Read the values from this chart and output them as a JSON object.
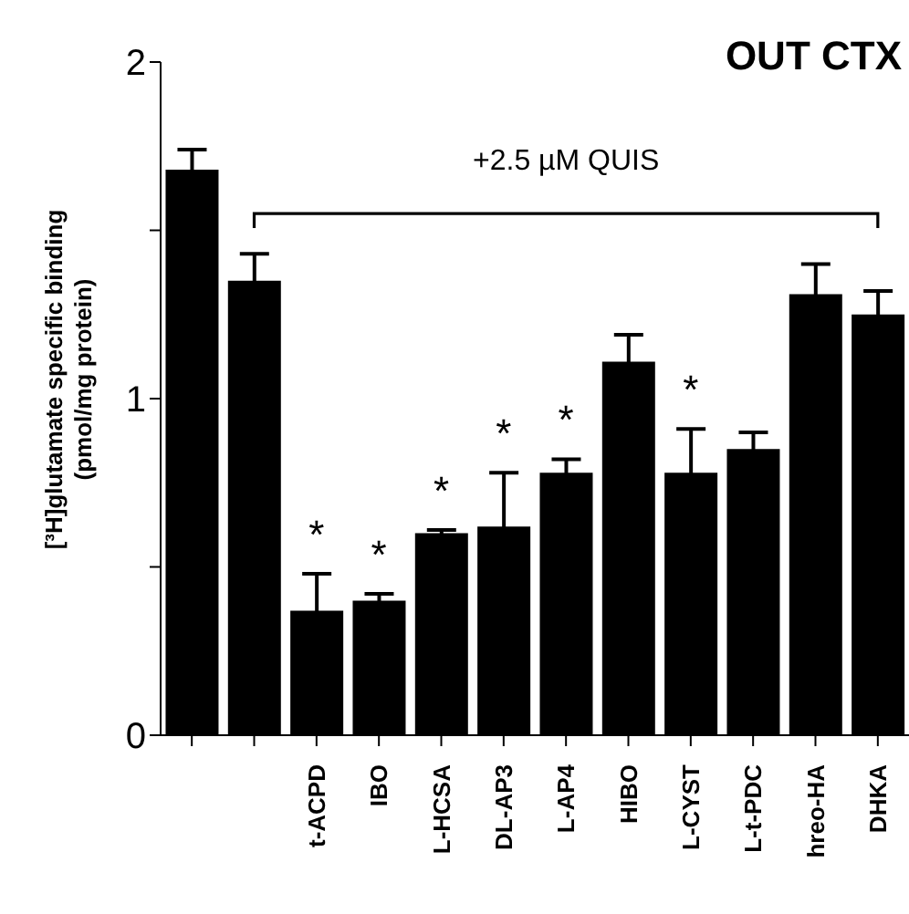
{
  "chart_data": {
    "type": "bar",
    "title": "OUT CTX",
    "ylabel": "[³H]glutamate specific binding\n(pmol/mg protein)",
    "categories": [
      null,
      null,
      "t-ACPD",
      "IBO",
      "L-HCSA",
      "DL-AP3",
      "L-AP4",
      "HIBO",
      "L-CYST",
      "L-t-PDC",
      "hreo-HA",
      "DHKA"
    ],
    "values": [
      1.68,
      1.35,
      0.37,
      0.4,
      0.6,
      0.62,
      0.78,
      1.11,
      0.78,
      0.85,
      1.31,
      1.25
    ],
    "errors": [
      0.06,
      0.08,
      0.11,
      0.02,
      0.01,
      0.16,
      0.04,
      0.08,
      0.13,
      0.05,
      0.09,
      0.07
    ],
    "color": "#000000",
    "ylim": [
      0,
      2
    ],
    "yticks": [
      0,
      {
        "value": 0.5,
        "label": null
      },
      1,
      {
        "value": 1.5,
        "label": null
      },
      2
    ],
    "value_labels": [
      null,
      null,
      "*",
      "*",
      "*",
      "*",
      "*",
      null,
      "*",
      null,
      null,
      null
    ],
    "annotations": [
      "+2.5 µM QUIS"
    ]
  }
}
